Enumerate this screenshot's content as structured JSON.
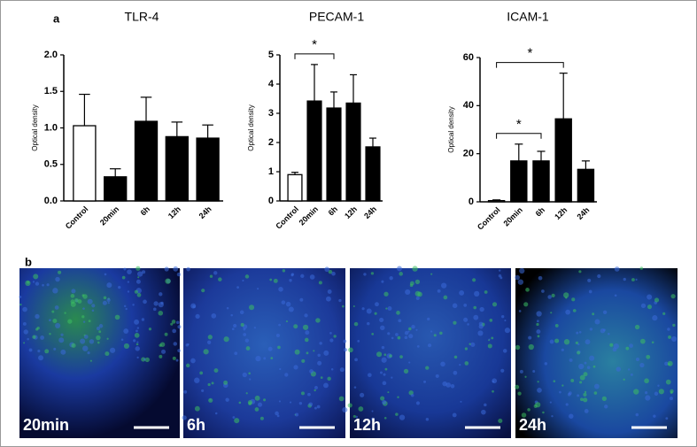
{
  "chart_data": [
    {
      "type": "bar",
      "title": "TLR-4",
      "y_label": "Optical density",
      "categories": [
        "Control",
        "20min",
        "6h",
        "12h",
        "24h"
      ],
      "values": [
        1.03,
        0.33,
        1.09,
        0.88,
        0.86
      ],
      "errors": [
        0.43,
        0.11,
        0.33,
        0.2,
        0.18
      ],
      "colors": [
        "#ffffff",
        "#000000",
        "#000000",
        "#000000",
        "#000000"
      ],
      "ylim": [
        0,
        2
      ],
      "yticks": [
        {
          "value": 0,
          "label": "0.0"
        },
        0.5,
        {
          "value": 1,
          "label": "1.0"
        },
        1.5,
        {
          "value": 2,
          "label": "2.0"
        }
      ],
      "annotations": []
    },
    {
      "type": "bar",
      "title": "PECAM-1",
      "y_label": "Optical density",
      "categories": [
        "Control",
        "20min",
        "6h",
        "12h",
        "24h"
      ],
      "values": [
        0.9,
        3.42,
        3.18,
        3.35,
        1.85
      ],
      "errors": [
        0.08,
        1.25,
        0.55,
        0.97,
        0.3
      ],
      "colors": [
        "#ffffff",
        "#000000",
        "#000000",
        "#000000",
        "#000000"
      ],
      "ylim": [
        0,
        5
      ],
      "yticks": [
        0,
        1,
        2,
        3,
        4,
        5
      ],
      "annotations": [
        {
          "from": 0,
          "to": 2,
          "text": "*"
        }
      ]
    },
    {
      "type": "bar",
      "title": "ICAM-1",
      "y_label": "Optical density",
      "categories": [
        "Control",
        "20min",
        "6h",
        "12h",
        "24h"
      ],
      "values": [
        0.5,
        17,
        17,
        34.5,
        13.5
      ],
      "errors": [
        0.3,
        7,
        4,
        19,
        3.5
      ],
      "colors": [
        "#ffffff",
        "#000000",
        "#000000",
        "#000000",
        "#000000"
      ],
      "ylim": [
        0,
        60
      ],
      "yticks": [
        0,
        20,
        40,
        60
      ],
      "annotations": [
        {
          "from": 0,
          "to": 2,
          "text": "*"
        },
        {
          "from": 0,
          "to": 3,
          "text": "*"
        }
      ]
    }
  ],
  "panel_labels": [
    "a",
    "b"
  ],
  "images": [
    {
      "label": "20min"
    },
    {
      "label": "6h"
    },
    {
      "label": "12h"
    },
    {
      "label": "24h"
    }
  ]
}
